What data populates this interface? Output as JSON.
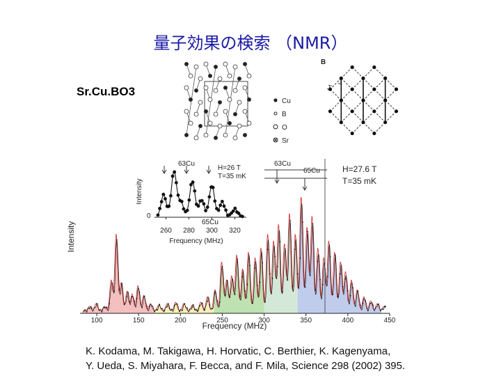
{
  "slide": {
    "title": "量子効果の検索 （NMR）",
    "compound": "Sr.Cu.BO3",
    "citation": [
      "K. Kodama, M. Takigawa, H. Horvatic, C. Berthier, K. Kagenyama,",
      "Y. Ueda, S. Miyahara, F. Becca, and F. Mila, Science 298 (2002) 395."
    ]
  },
  "structure_legend": {
    "items": [
      {
        "label": "Cu",
        "symbol": "filled-dot-icon"
      },
      {
        "label": "B",
        "symbol": "open-small-circle-icon"
      },
      {
        "label": "O",
        "symbol": "open-circle-icon"
      },
      {
        "label": "Sr",
        "symbol": "crossed-circle-icon"
      }
    ]
  },
  "lattice": {
    "labels": {
      "b": "B",
      "j1": "J",
      "j2": "J'"
    }
  },
  "chart_data": [
    {
      "type": "line",
      "xlabel": "Frequency (MHz)",
      "ylabel": "Intensity",
      "xlim": [
        80,
        450
      ],
      "xticks": [
        100,
        150,
        200,
        250,
        300,
        350,
        400,
        450
      ],
      "annotations": [
        "H=27.6 T",
        "T=35 mK",
        "63Cu",
        "65Cu"
      ],
      "peaks": [
        {
          "x": 92,
          "y": 0.03
        },
        {
          "x": 100,
          "y": 0.05
        },
        {
          "x": 110,
          "y": 0.03
        },
        {
          "x": 118,
          "y": 0.22
        },
        {
          "x": 124,
          "y": 0.55
        },
        {
          "x": 130,
          "y": 0.2
        },
        {
          "x": 137,
          "y": 0.14
        },
        {
          "x": 143,
          "y": 0.12
        },
        {
          "x": 150,
          "y": 0.18
        },
        {
          "x": 157,
          "y": 0.11
        },
        {
          "x": 165,
          "y": 0.05
        },
        {
          "x": 175,
          "y": 0.04
        },
        {
          "x": 185,
          "y": 0.05
        },
        {
          "x": 195,
          "y": 0.06
        },
        {
          "x": 205,
          "y": 0.05
        },
        {
          "x": 215,
          "y": 0.04
        },
        {
          "x": 225,
          "y": 0.06
        },
        {
          "x": 233,
          "y": 0.1
        },
        {
          "x": 242,
          "y": 0.15
        },
        {
          "x": 250,
          "y": 0.35
        },
        {
          "x": 256,
          "y": 0.22
        },
        {
          "x": 262,
          "y": 0.25
        },
        {
          "x": 268,
          "y": 0.4
        },
        {
          "x": 275,
          "y": 0.3
        },
        {
          "x": 282,
          "y": 0.42
        },
        {
          "x": 290,
          "y": 0.38
        },
        {
          "x": 297,
          "y": 0.45
        },
        {
          "x": 305,
          "y": 0.55
        },
        {
          "x": 312,
          "y": 0.5
        },
        {
          "x": 318,
          "y": 0.62
        },
        {
          "x": 325,
          "y": 0.48
        },
        {
          "x": 331,
          "y": 0.7
        },
        {
          "x": 338,
          "y": 0.55
        },
        {
          "x": 345,
          "y": 0.82
        },
        {
          "x": 352,
          "y": 0.6
        },
        {
          "x": 358,
          "y": 0.68
        },
        {
          "x": 365,
          "y": 0.45
        },
        {
          "x": 372,
          "y": 0.38
        },
        {
          "x": 378,
          "y": 0.5
        },
        {
          "x": 385,
          "y": 0.42
        },
        {
          "x": 392,
          "y": 0.35
        },
        {
          "x": 398,
          "y": 0.28
        },
        {
          "x": 405,
          "y": 0.22
        },
        {
          "x": 412,
          "y": 0.15
        },
        {
          "x": 420,
          "y": 0.1
        },
        {
          "x": 428,
          "y": 0.07
        },
        {
          "x": 436,
          "y": 0.05
        },
        {
          "x": 444,
          "y": 0.03
        }
      ],
      "shading": [
        {
          "from": 82,
          "to": 168,
          "color": "#f2b8b8"
        },
        {
          "from": 168,
          "to": 240,
          "color": "#f3efb0"
        },
        {
          "from": 240,
          "to": 300,
          "color": "#b7dfa8"
        },
        {
          "from": 300,
          "to": 340,
          "color": "#cfe6d4"
        },
        {
          "from": 340,
          "to": 440,
          "color": "#b9c6ea"
        }
      ]
    },
    {
      "type": "line",
      "xlabel": "Frequency (MHz)",
      "ylabel": "Intensity",
      "xlim": [
        250,
        330
      ],
      "xticks": [
        260,
        280,
        300,
        320
      ],
      "annotations": [
        "H=26 T",
        "T=35 mK",
        "63Cu",
        "65Cu"
      ],
      "peaks": [
        {
          "x": 258,
          "y": 0.45
        },
        {
          "x": 267,
          "y": 0.95
        },
        {
          "x": 273,
          "y": 0.3
        },
        {
          "x": 283,
          "y": 0.75
        },
        {
          "x": 291,
          "y": 0.35
        },
        {
          "x": 300,
          "y": 0.65
        },
        {
          "x": 309,
          "y": 0.3
        },
        {
          "x": 320,
          "y": 0.15
        }
      ]
    }
  ]
}
